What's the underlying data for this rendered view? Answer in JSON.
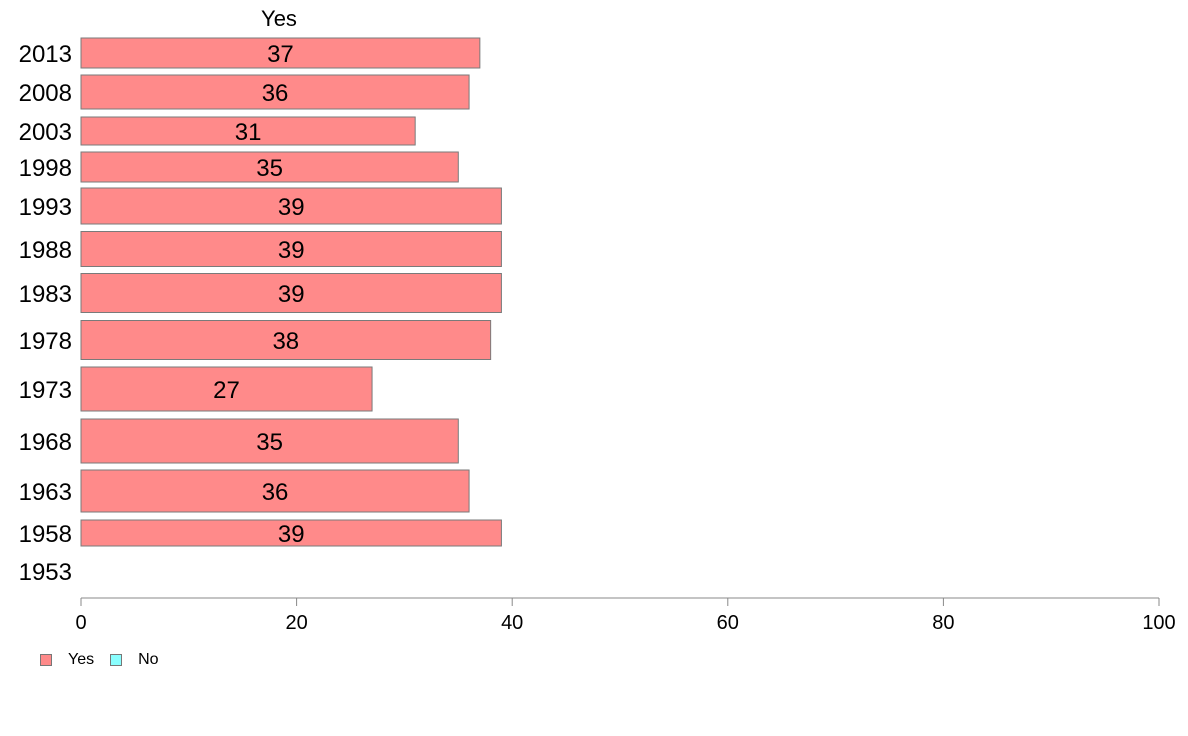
{
  "chart_data": {
    "type": "bar",
    "orientation": "horizontal",
    "panel_title": "Yes",
    "categories": [
      "2013",
      "2008",
      "2003",
      "1998",
      "1993",
      "1988",
      "1983",
      "1978",
      "1973",
      "1968",
      "1963",
      "1958",
      "1953"
    ],
    "series": [
      {
        "name": "Yes",
        "color": "#ff8a8a",
        "values": [
          37,
          36,
          31,
          35,
          39,
          39,
          39,
          38,
          27,
          35,
          36,
          39,
          null
        ]
      }
    ],
    "data_labels": [
      "37",
      "36",
      "31",
      "35",
      "39",
      "39",
      "39",
      "38",
      "27",
      "35",
      "36",
      "39",
      ""
    ],
    "xlim": [
      0,
      100
    ],
    "xticks": [
      "0",
      "20",
      "40",
      "60",
      "80",
      "100"
    ],
    "legend": {
      "position": "bottom-left",
      "items": [
        {
          "label": "Yes",
          "color": "#ff8a8a"
        },
        {
          "label": "No",
          "color": "#8affff"
        }
      ]
    },
    "grid": false
  }
}
